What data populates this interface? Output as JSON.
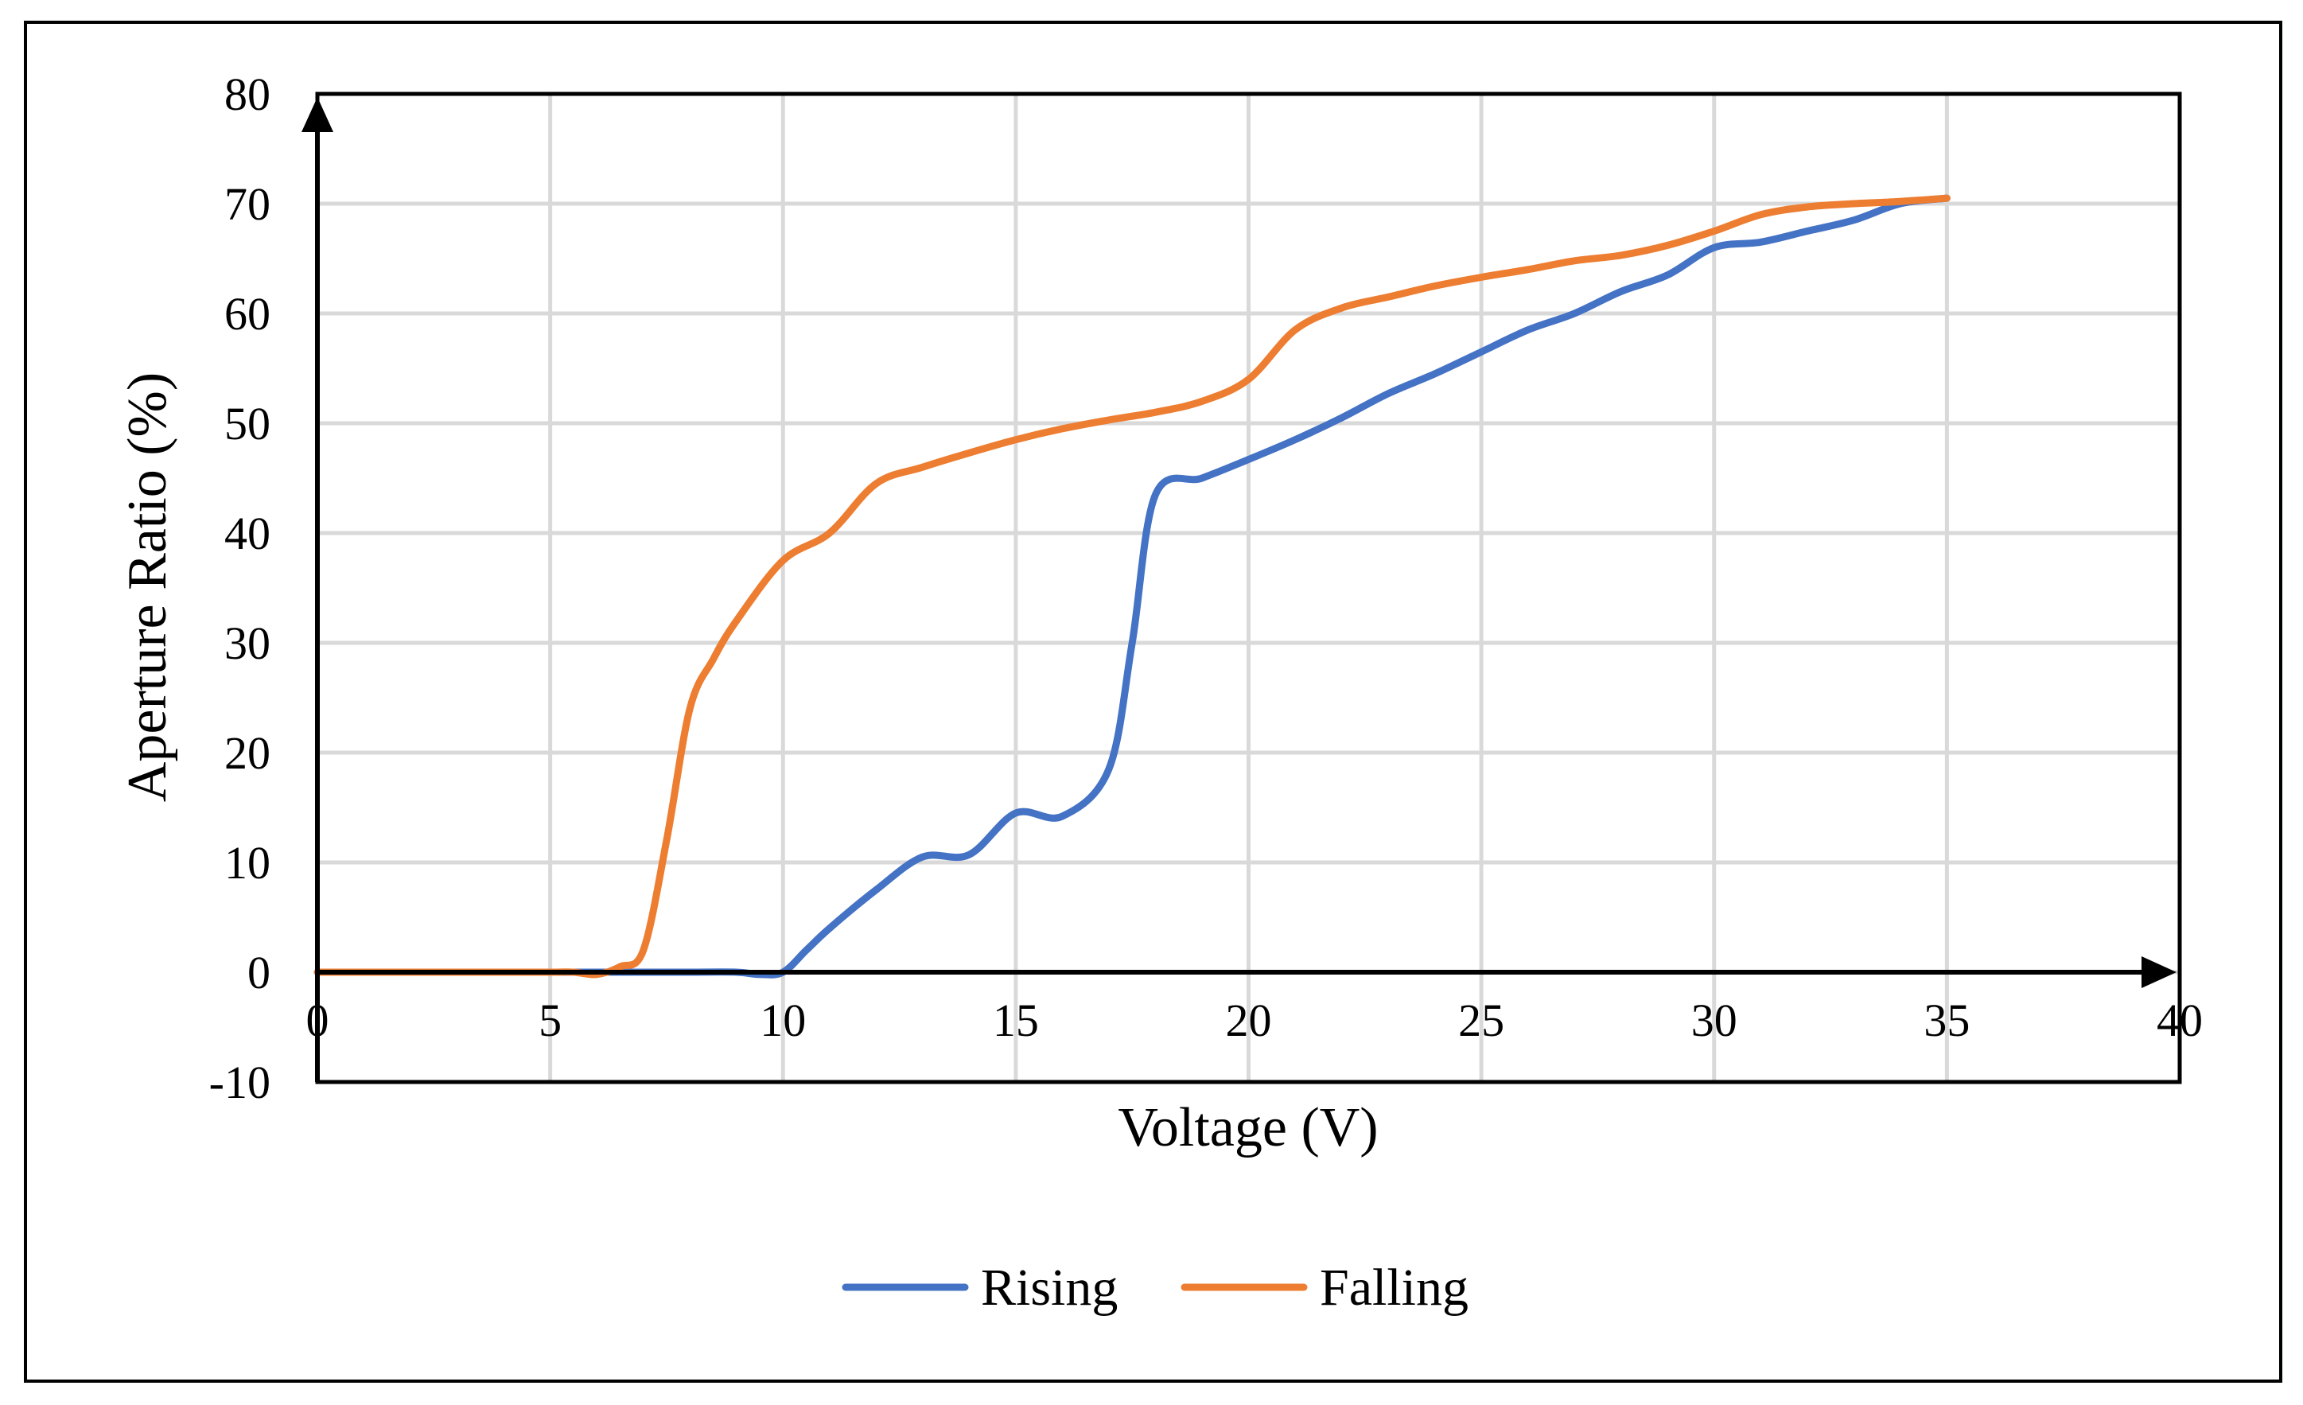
{
  "chart_data": {
    "type": "line",
    "title": "",
    "xlabel": "Voltage (V)",
    "ylabel": "Aperture Ratio (%)",
    "xlim": [
      0,
      40
    ],
    "ylim": [
      -10,
      80
    ],
    "xticks": [
      0,
      5,
      10,
      15,
      20,
      25,
      30,
      35,
      40
    ],
    "yticks": [
      -10,
      0,
      10,
      20,
      30,
      40,
      50,
      60,
      70,
      80
    ],
    "xtick_labels": [
      "0",
      "5",
      "10",
      "15",
      "20",
      "25",
      "30",
      "35",
      "40"
    ],
    "ytick_labels": [
      "-10",
      "0",
      "10",
      "20",
      "30",
      "40",
      "50",
      "60",
      "70",
      "80"
    ],
    "grid": true,
    "legend_position": "bottom",
    "series": [
      {
        "name": "Rising",
        "color": "#4472C4",
        "x": [
          0,
          1,
          2,
          3,
          4,
          5,
          6,
          7,
          8,
          9,
          9.5,
          10,
          10.5,
          11,
          12,
          13,
          14,
          15,
          16,
          17,
          17.5,
          18,
          19,
          20,
          21,
          22,
          23,
          24,
          25,
          26,
          27,
          28,
          29,
          30,
          31,
          32,
          33,
          34,
          35
        ],
        "y": [
          0,
          0,
          0,
          0,
          0,
          0,
          0,
          0,
          0,
          0,
          -0.2,
          0,
          2,
          4,
          7.5,
          10.5,
          10.7,
          14.5,
          14.2,
          18.5,
          30,
          43.5,
          45,
          46.7,
          48.5,
          50.5,
          52.7,
          54.5,
          56.5,
          58.5,
          60,
          62,
          63.5,
          66,
          66.5,
          67.5,
          68.5,
          70,
          70.5
        ]
      },
      {
        "name": "Falling",
        "color": "#ED7D31",
        "x": [
          0,
          1,
          2,
          3,
          4,
          5,
          5.5,
          6,
          6.5,
          7,
          7.5,
          8,
          8.5,
          9,
          10,
          11,
          12,
          13,
          14,
          15,
          16,
          17,
          18,
          19,
          20,
          21,
          22,
          23,
          24,
          25,
          26,
          27,
          28,
          29,
          30,
          31,
          32,
          33,
          34,
          35
        ],
        "y": [
          0,
          0,
          0,
          0,
          0,
          0,
          0,
          -0.2,
          0.5,
          2,
          12,
          24,
          28.5,
          32,
          37.5,
          40,
          44.5,
          46,
          47.3,
          48.5,
          49.5,
          50.3,
          51,
          52,
          54,
          58.5,
          60.5,
          61.5,
          62.5,
          63.3,
          64,
          64.8,
          65.3,
          66.2,
          67.5,
          69,
          69.7,
          70,
          70.2,
          70.5
        ]
      }
    ]
  }
}
